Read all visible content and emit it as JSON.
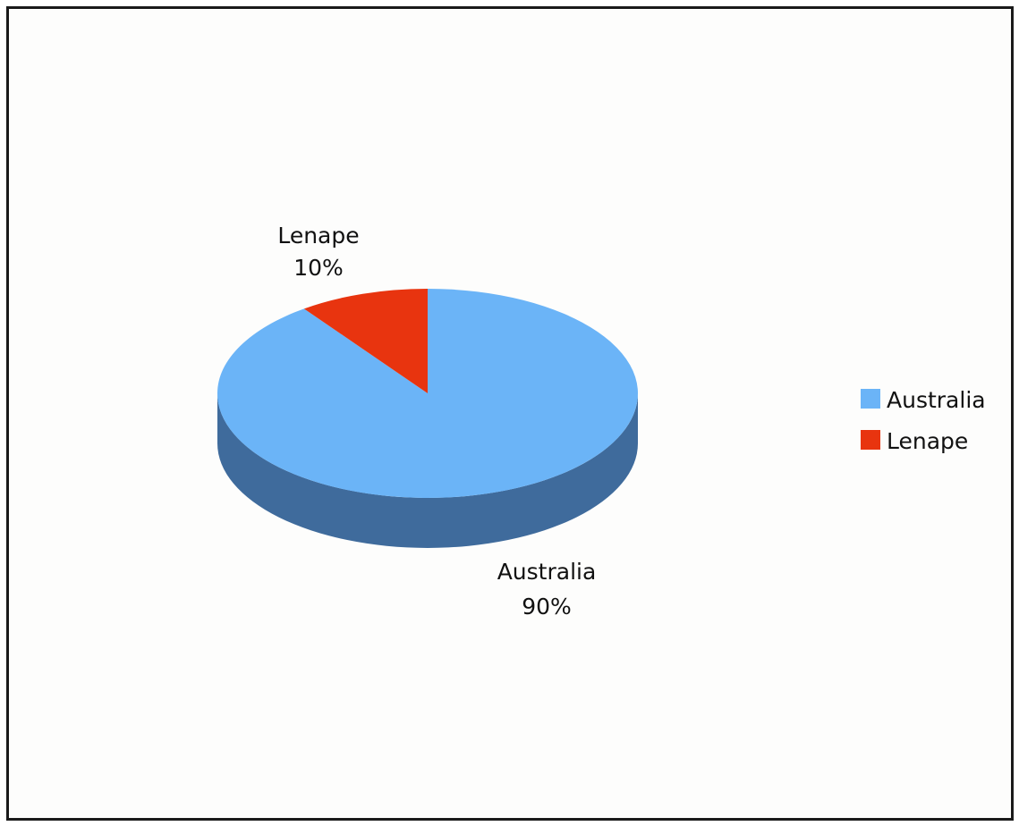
{
  "chart_data": {
    "type": "pie",
    "style": "3d",
    "categories": [
      "Australia",
      "Lenape"
    ],
    "values": [
      90,
      10
    ],
    "unit": "%",
    "labels": [
      {
        "name": "Australia",
        "value": "90%"
      },
      {
        "name": "Lenape",
        "value": "10%"
      }
    ],
    "colors": {
      "Australia": "#6bb4f7",
      "Lenape": "#e8340f",
      "Australia_side": "#3f6b9c"
    },
    "legend": {
      "position": "right",
      "entries": [
        "Australia",
        "Lenape"
      ]
    },
    "title": ""
  }
}
